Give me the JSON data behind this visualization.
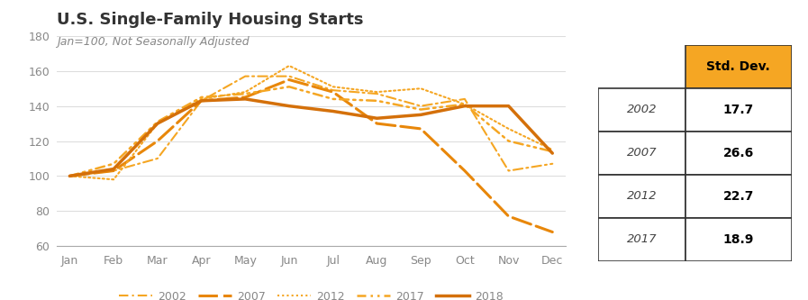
{
  "title": "U.S. Single-Family Housing Starts",
  "subtitle": "Jan=100, Not Seasonally Adjusted",
  "months": [
    "Jan",
    "Feb",
    "Mar",
    "Apr",
    "May",
    "Jun",
    "Jul",
    "Aug",
    "Sep",
    "Oct",
    "Nov",
    "Dec"
  ],
  "series": {
    "2002": [
      100,
      103,
      110,
      143,
      157,
      157,
      149,
      147,
      140,
      144,
      103,
      107
    ],
    "2007": [
      100,
      103,
      120,
      143,
      145,
      155,
      148,
      130,
      127,
      103,
      77,
      68
    ],
    "2012": [
      100,
      98,
      130,
      144,
      148,
      163,
      151,
      148,
      150,
      141,
      127,
      115
    ],
    "2017": [
      100,
      107,
      131,
      145,
      147,
      151,
      144,
      143,
      138,
      141,
      120,
      114
    ],
    "2018": [
      100,
      104,
      130,
      143,
      144,
      140,
      137,
      133,
      135,
      140,
      140,
      113
    ]
  },
  "series_order": [
    "2002",
    "2007",
    "2012",
    "2017",
    "2018"
  ],
  "line_colors": {
    "2002": "#F5A623",
    "2007": "#E8870A",
    "2012": "#F5A623",
    "2017": "#F5A623",
    "2018": "#D4700A"
  },
  "line_widths": {
    "2002": 1.5,
    "2007": 2.2,
    "2012": 1.5,
    "2017": 1.8,
    "2018": 2.5
  },
  "ylim": [
    60,
    180
  ],
  "yticks": [
    60,
    80,
    100,
    120,
    140,
    160,
    180
  ],
  "table_years": [
    "2002",
    "2007",
    "2012",
    "2017"
  ],
  "table_values": [
    "17.7",
    "26.6",
    "22.7",
    "18.9"
  ],
  "table_header": "Std. Dev.",
  "table_header_bg": "#F5A623",
  "table_border_color": "#333333",
  "background_color": "#FFFFFF",
  "grid_color": "#DDDDDD",
  "title_fontsize": 13,
  "subtitle_fontsize": 9,
  "tick_fontsize": 9,
  "legend_fontsize": 9,
  "axis_text_color": "#888888",
  "title_color": "#333333"
}
